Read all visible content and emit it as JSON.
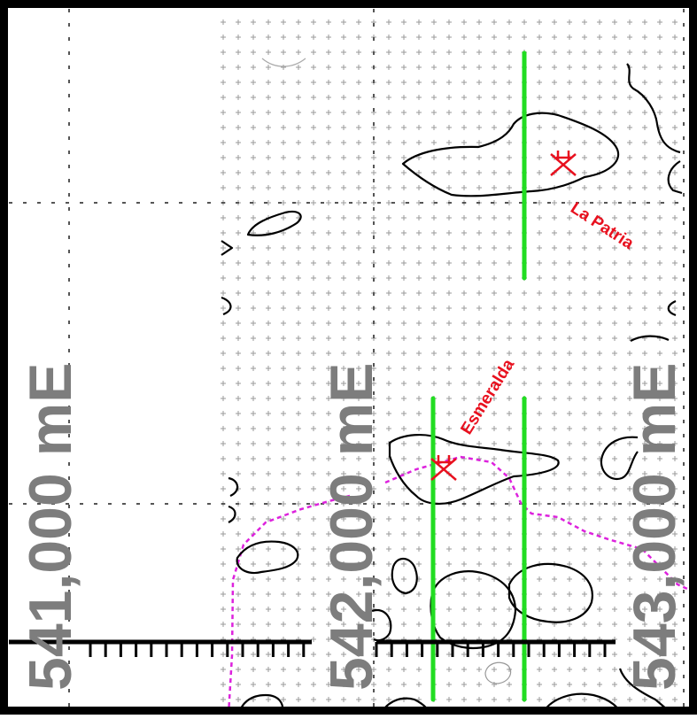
{
  "map": {
    "easting_labels": [
      "541,000 mE",
      "542,000 mE",
      "543,000 mE"
    ],
    "sites": [
      {
        "name": "La Patria",
        "marker_icon": "red-cross-marker-icon"
      },
      {
        "name": "Esmeralda",
        "marker_icon": "red-cross-marker-icon"
      }
    ],
    "colors": {
      "frame": "#000000",
      "contour": "#000000",
      "survey_line": "#22dd22",
      "boundary": "#dd22dd",
      "label_grey": "#7d7d7d",
      "site_label": "#e8101e"
    }
  }
}
